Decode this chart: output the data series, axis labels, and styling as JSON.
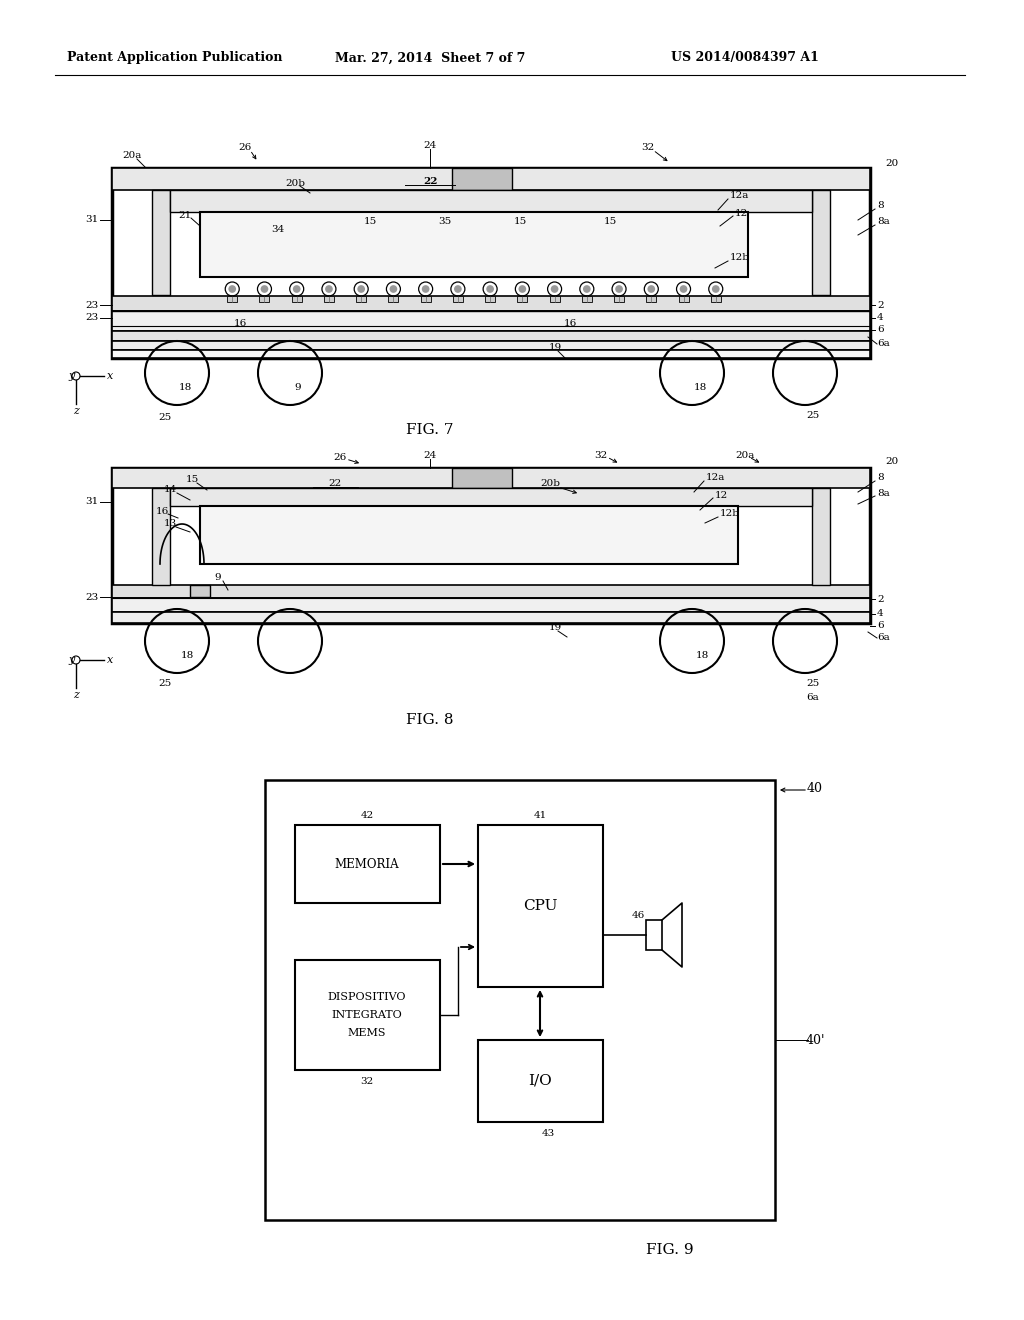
{
  "bg_color": "#ffffff",
  "header_left": "Patent Application Publication",
  "header_mid": "Mar. 27, 2014  Sheet 7 of 7",
  "header_right": "US 2014/0084397 A1"
}
